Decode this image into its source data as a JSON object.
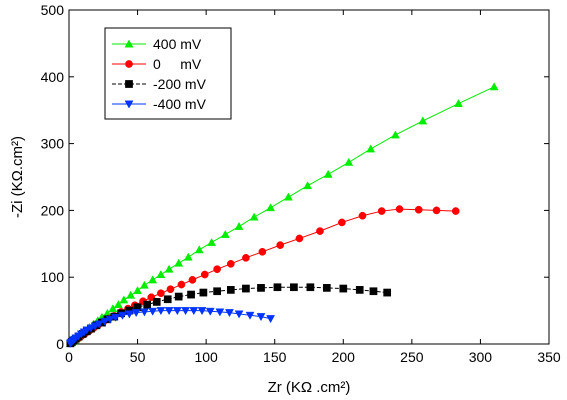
{
  "chart_data": {
    "type": "scatter",
    "title": "",
    "xlabel": "Zr (KΩ .cm²)",
    "ylabel": "-Zi (KΩ.cm²)",
    "xlim": [
      0,
      350
    ],
    "ylim": [
      0,
      500
    ],
    "xticks": [
      0,
      50,
      100,
      150,
      200,
      250,
      300,
      350
    ],
    "yticks": [
      0,
      100,
      200,
      300,
      400,
      500
    ],
    "grid": false,
    "legend_position": "top-left",
    "series": [
      {
        "name": "400 mV",
        "color": "#00ee00",
        "marker": "triangle-up",
        "x": [
          1,
          2,
          3,
          4,
          6,
          8,
          10,
          12,
          15,
          18,
          21,
          24,
          28,
          32,
          36,
          40,
          45,
          50,
          55,
          61,
          67,
          73,
          80,
          87,
          95,
          104,
          114,
          124,
          135,
          147,
          160,
          174,
          189,
          204,
          220,
          238,
          258,
          284,
          310
        ],
        "y": [
          1,
          2,
          4,
          6,
          9,
          12,
          16,
          20,
          25,
          30,
          35,
          40,
          46,
          53,
          59,
          66,
          73,
          80,
          88,
          96,
          104,
          112,
          121,
          130,
          141,
          152,
          164,
          176,
          190,
          204,
          220,
          237,
          254,
          272,
          292,
          313,
          334,
          360,
          385
        ]
      },
      {
        "name": "0     mV",
        "color": "#ff0000",
        "marker": "circle",
        "x": [
          1,
          2,
          3,
          5,
          7,
          9,
          12,
          15,
          18,
          21,
          25,
          29,
          33,
          38,
          43,
          48,
          54,
          60,
          67,
          74,
          82,
          90,
          99,
          108,
          118,
          129,
          141,
          154,
          168,
          183,
          199,
          214,
          228,
          241,
          255,
          268,
          282
        ],
        "y": [
          1,
          2,
          4,
          6,
          9,
          12,
          16,
          20,
          24,
          28,
          33,
          38,
          42,
          48,
          53,
          58,
          64,
          70,
          76,
          82,
          89,
          96,
          104,
          112,
          120,
          129,
          138,
          148,
          158,
          169,
          182,
          192,
          199,
          202,
          201,
          200,
          199
        ]
      },
      {
        "name": "-200 mV",
        "color": "#000000",
        "marker": "square",
        "x": [
          1,
          2,
          3,
          5,
          7,
          10,
          13,
          16,
          20,
          24,
          28,
          33,
          38,
          44,
          50,
          57,
          64,
          72,
          80,
          89,
          98,
          108,
          118,
          129,
          140,
          152,
          164,
          176,
          188,
          200,
          212,
          222,
          232
        ],
        "y": [
          1,
          3,
          5,
          8,
          11,
          15,
          19,
          23,
          28,
          32,
          37,
          41,
          46,
          50,
          55,
          59,
          63,
          67,
          71,
          74,
          77,
          79,
          81,
          83,
          84,
          85,
          85,
          85,
          84,
          83,
          81,
          79,
          77
        ]
      },
      {
        "name": "-400 mV",
        "color": "#0033ff",
        "marker": "triangle-down",
        "x": [
          1,
          2,
          3,
          4,
          5,
          7,
          9,
          11,
          13,
          16,
          19,
          22,
          26,
          30,
          34,
          39,
          44,
          49,
          55,
          61,
          67,
          73,
          79,
          85,
          91,
          97,
          103,
          110,
          117,
          124,
          132,
          140,
          147
        ],
        "y": [
          1,
          3,
          5,
          7,
          9,
          12,
          15,
          18,
          21,
          24,
          27,
          30,
          34,
          37,
          40,
          43,
          45,
          47,
          48,
          49,
          50,
          50,
          50,
          50,
          50,
          50,
          49,
          48,
          47,
          45,
          43,
          41,
          38
        ]
      }
    ]
  }
}
